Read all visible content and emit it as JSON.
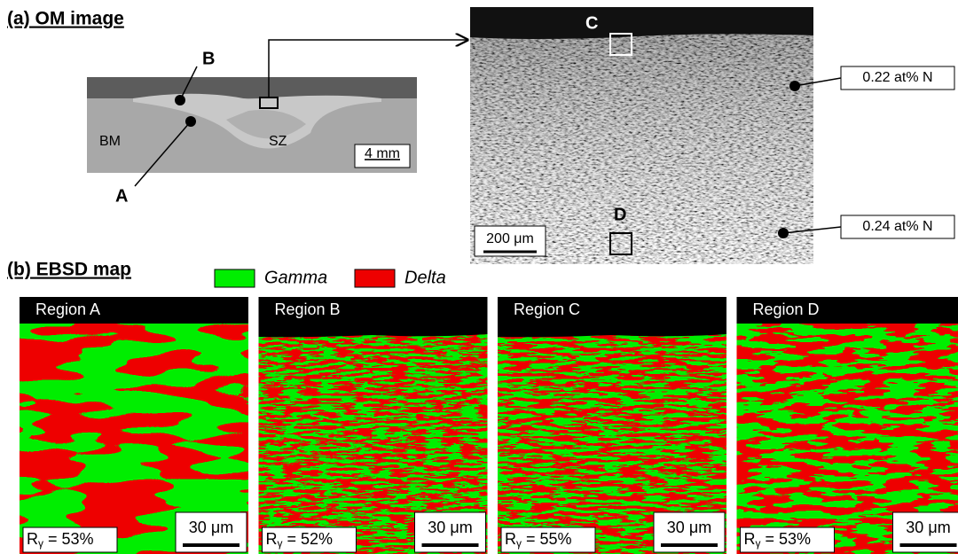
{
  "om_panel": {
    "title": "(a) OM image",
    "macro": {
      "label_a": "A",
      "label_b": "B",
      "label_bm": "BM",
      "label_sz": "SZ",
      "scale": "4 mm"
    },
    "micro": {
      "label_c": "C",
      "label_d": "D",
      "scale": "200 μm",
      "nitrogen_top": "0.22 at% N",
      "nitrogen_bottom": "0.24 at% N"
    }
  },
  "ebsd_panel": {
    "title": "(b) EBSD map",
    "legend": [
      {
        "name": "Gamma",
        "color": "#00ee00"
      },
      {
        "name": "Delta",
        "color": "#ee0000"
      }
    ],
    "regions": [
      {
        "name": "Region A",
        "ratio_symbol": "R",
        "ratio_subscript": "γ",
        "ratio_value": " = 53%",
        "scale": "30 μm"
      },
      {
        "name": "Region B",
        "ratio_symbol": "R",
        "ratio_subscript": "γ",
        "ratio_value": " = 52%",
        "scale": "30 μm"
      },
      {
        "name": "Region C",
        "ratio_symbol": "R",
        "ratio_subscript": "γ",
        "ratio_value": " = 55%",
        "scale": "30 μm"
      },
      {
        "name": "Region D",
        "ratio_symbol": "R",
        "ratio_subscript": "γ",
        "ratio_value": " = 53%",
        "scale": "30 μm"
      }
    ]
  }
}
